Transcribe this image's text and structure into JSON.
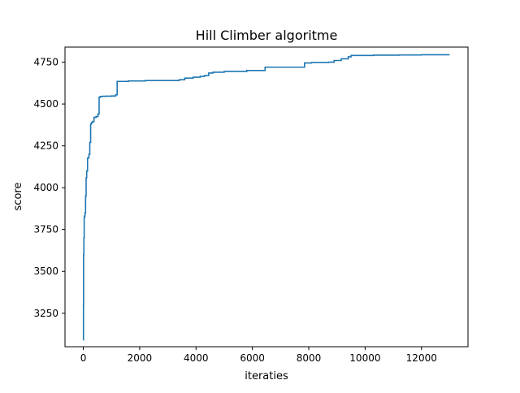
{
  "chart_data": {
    "type": "line",
    "title": "Hill Climber algoritme",
    "xlabel": "iteraties",
    "ylabel": "score",
    "xlim": [
      -650,
      13650
    ],
    "ylim": [
      3050,
      4840
    ],
    "xticks": [
      0,
      2000,
      4000,
      6000,
      8000,
      10000,
      12000
    ],
    "yticks": [
      3250,
      3500,
      3750,
      4000,
      4250,
      4500,
      4750
    ],
    "grid": false,
    "legend": "none",
    "line_color": "#1f77b4",
    "series": [
      {
        "step": "post",
        "x": [
          0,
          5,
          10,
          20,
          30,
          40,
          60,
          80,
          100,
          120,
          150,
          170,
          200,
          230,
          260,
          290,
          330,
          380,
          450,
          520,
          560,
          600,
          680,
          800,
          1000,
          1150,
          1200,
          1600,
          2200,
          3300,
          3400,
          3600,
          3900,
          4150,
          4300,
          4450,
          4600,
          5000,
          5800,
          6450,
          7800,
          7850,
          8100,
          8700,
          8900,
          9150,
          9400,
          9500,
          10300,
          11200,
          12000,
          13000
        ],
        "y": [
          3090,
          3300,
          3600,
          3700,
          3820,
          3830,
          3850,
          3950,
          4060,
          4100,
          4175,
          4180,
          4200,
          4270,
          4380,
          4390,
          4395,
          4420,
          4425,
          4440,
          4540,
          4545,
          4546,
          4547,
          4548,
          4555,
          4635,
          4638,
          4640,
          4640,
          4645,
          4655,
          4660,
          4665,
          4670,
          4685,
          4690,
          4695,
          4700,
          4720,
          4720,
          4745,
          4748,
          4750,
          4760,
          4770,
          4782,
          4790,
          4792,
          4793,
          4794,
          4794
        ]
      }
    ]
  }
}
